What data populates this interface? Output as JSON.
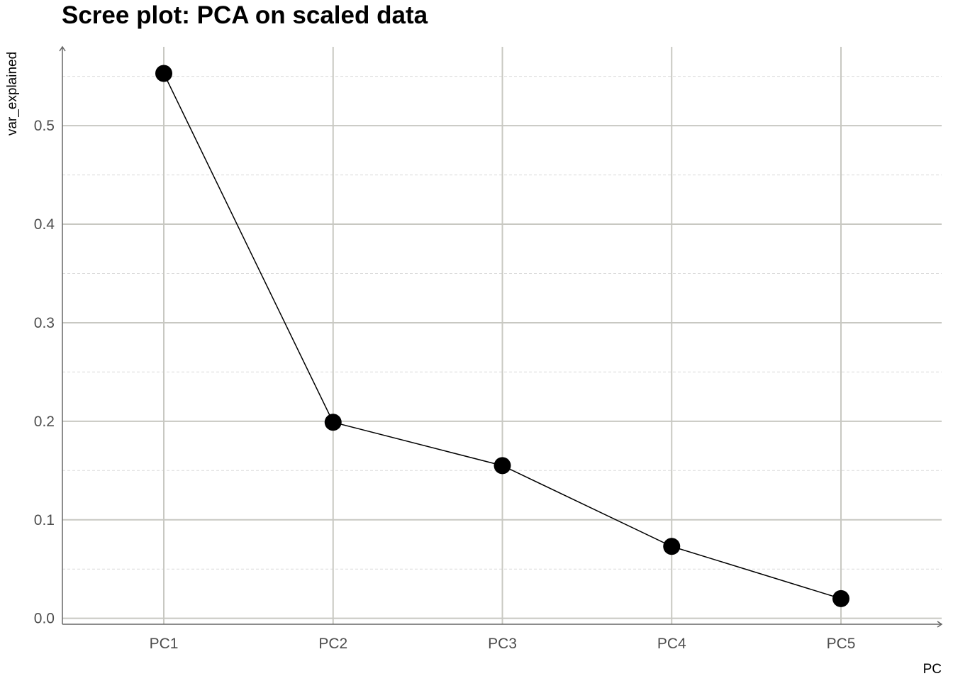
{
  "chart_data": {
    "type": "line",
    "title": "Scree plot: PCA on scaled data",
    "xlabel": "PC",
    "ylabel": "var_explained",
    "categories": [
      "PC1",
      "PC2",
      "PC3",
      "PC4",
      "PC5"
    ],
    "series": [
      {
        "values": [
          0.553,
          0.199,
          0.155,
          0.073,
          0.02
        ]
      }
    ],
    "y_ticks": [
      "0.0",
      "0.1",
      "0.2",
      "0.3",
      "0.4",
      "0.5"
    ],
    "ylim": [
      -0.006,
      0.58
    ],
    "grid": true,
    "legend": "none",
    "markers": true,
    "colors": {
      "series": "#000000",
      "grid_major": "#c8c8c2",
      "grid_minor": "#dadada",
      "axis": "#666666",
      "tick_label": "#4d4d4d"
    }
  }
}
